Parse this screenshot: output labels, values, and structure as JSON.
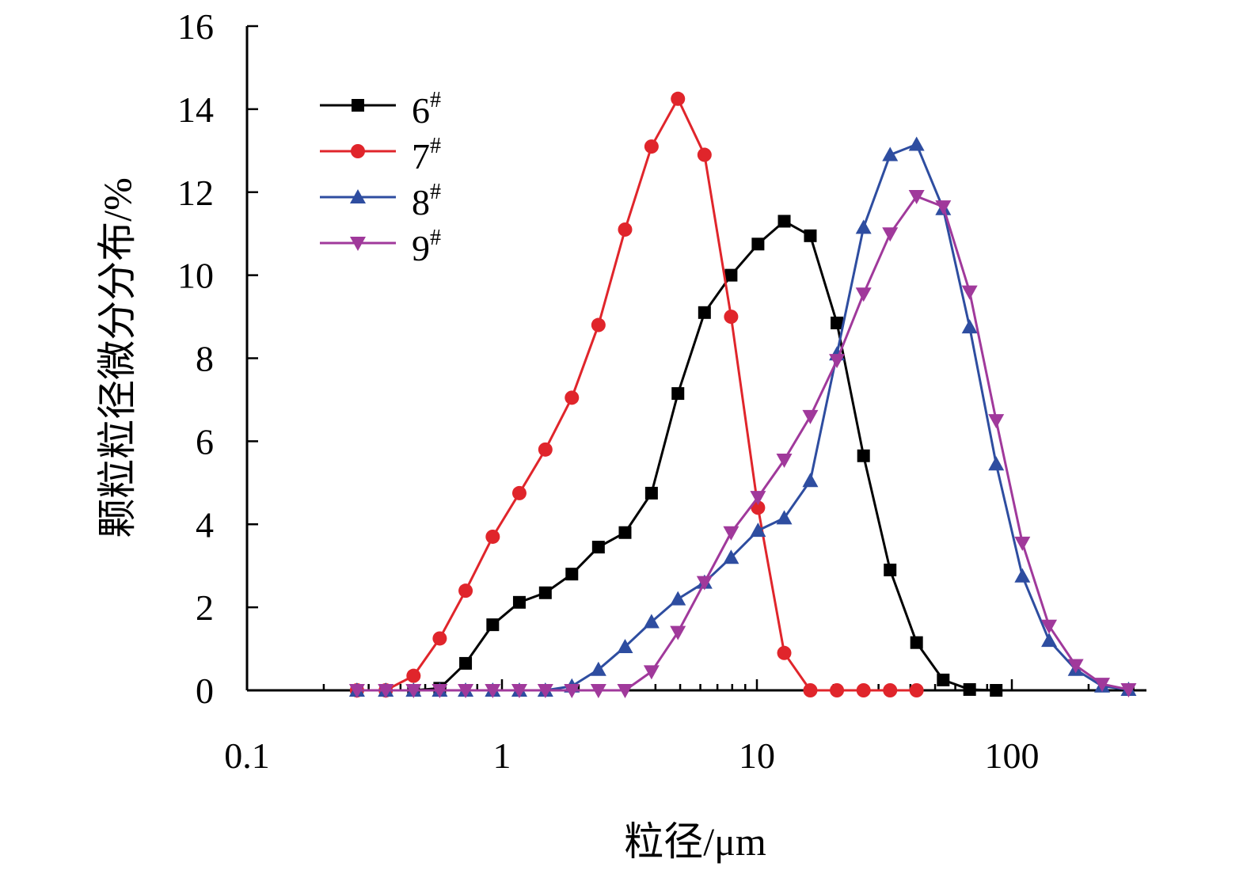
{
  "chart_data": {
    "type": "line",
    "xscale": "log",
    "xlim": [
      0.1,
      330
    ],
    "ylim": [
      0,
      16
    ],
    "xticks": [
      0.1,
      1,
      10,
      100
    ],
    "xtick_labels": [
      "0.1",
      "1",
      "10",
      "100"
    ],
    "yticks": [
      0,
      2,
      4,
      6,
      8,
      10,
      12,
      14,
      16
    ],
    "ytick_labels": [
      "0",
      "2",
      "4",
      "6",
      "8",
      "10",
      "12",
      "14",
      "16"
    ],
    "xlabel": "粒径/μm",
    "ylabel": "颗粒粒径微分分布/%",
    "grid": false,
    "legend_position": "top-left",
    "series": [
      {
        "name": "6",
        "name_sup": "#",
        "color": "#000000",
        "marker": "square",
        "x": [
          0.27,
          0.35,
          0.45,
          0.57,
          0.72,
          0.92,
          1.17,
          1.48,
          1.88,
          2.39,
          3.04,
          3.86,
          4.9,
          6.23,
          7.92,
          10.1,
          12.8,
          16.2,
          20.6,
          26.2,
          33.3,
          42.3,
          53.8,
          68.3,
          86.8
        ],
        "y": [
          0,
          0,
          0,
          0.05,
          0.65,
          1.58,
          2.12,
          2.35,
          2.8,
          3.45,
          3.8,
          4.75,
          7.15,
          9.1,
          10.0,
          10.75,
          11.3,
          10.95,
          8.85,
          5.65,
          2.9,
          1.15,
          0.25,
          0.02,
          0
        ]
      },
      {
        "name": "7",
        "name_sup": "#",
        "color": "#e0252b",
        "marker": "circle",
        "x": [
          0.27,
          0.35,
          0.45,
          0.57,
          0.72,
          0.92,
          1.17,
          1.48,
          1.88,
          2.39,
          3.04,
          3.86,
          4.9,
          6.23,
          7.92,
          10.1,
          12.8,
          16.2,
          20.6,
          26.2,
          33.3,
          42.3
        ],
        "y": [
          0,
          0,
          0.35,
          1.25,
          2.4,
          3.7,
          4.75,
          5.8,
          7.05,
          8.8,
          11.1,
          13.1,
          14.25,
          12.9,
          9.0,
          4.4,
          0.9,
          0,
          0,
          0,
          0,
          0
        ]
      },
      {
        "name": "8",
        "name_sup": "#",
        "color": "#2e4da0",
        "marker": "triangle-up",
        "x": [
          0.27,
          0.35,
          0.45,
          0.57,
          0.72,
          0.92,
          1.17,
          1.48,
          1.88,
          2.39,
          3.04,
          3.86,
          4.9,
          6.23,
          7.92,
          10.1,
          12.8,
          16.2,
          20.6,
          26.2,
          33.3,
          42.3,
          53.8,
          68.3,
          86.8,
          110,
          140,
          178,
          226,
          287
        ],
        "y": [
          0,
          0,
          0,
          0,
          0,
          0,
          0,
          0,
          0.1,
          0.5,
          1.05,
          1.65,
          2.2,
          2.6,
          3.2,
          3.85,
          4.15,
          5.05,
          8.1,
          11.15,
          12.9,
          13.15,
          11.6,
          8.75,
          5.45,
          2.75,
          1.2,
          0.5,
          0.1,
          0.02
        ]
      },
      {
        "name": "9",
        "name_sup": "#",
        "color": "#a0399b",
        "marker": "triangle-down",
        "x": [
          0.27,
          0.35,
          0.45,
          0.57,
          0.72,
          0.92,
          1.17,
          1.48,
          1.88,
          2.39,
          3.04,
          3.86,
          4.9,
          6.23,
          7.92,
          10.1,
          12.8,
          16.2,
          20.6,
          26.2,
          33.3,
          42.3,
          53.8,
          68.3,
          86.8,
          110,
          140,
          178,
          226,
          287
        ],
        "y": [
          0,
          0,
          0,
          0,
          0,
          0,
          0,
          0,
          0,
          0,
          0,
          0.45,
          1.4,
          2.6,
          3.8,
          4.65,
          5.55,
          6.6,
          7.95,
          9.55,
          11.0,
          11.9,
          11.65,
          9.6,
          6.5,
          3.55,
          1.55,
          0.6,
          0.15,
          0.02
        ]
      }
    ]
  }
}
